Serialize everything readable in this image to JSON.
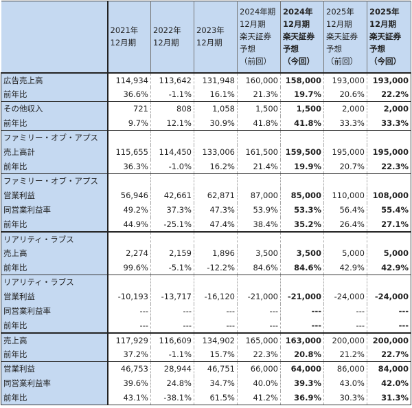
{
  "header": {
    "columns": [
      {
        "lines": [
          "2021年",
          "12月期"
        ],
        "bold": false
      },
      {
        "lines": [
          "2022年",
          "12月期"
        ],
        "bold": false
      },
      {
        "lines": [
          "2023年",
          "12月期"
        ],
        "bold": false
      },
      {
        "lines": [
          "2024年期",
          "12月期",
          "楽天証券",
          "予想",
          "（前回）"
        ],
        "bold": false
      },
      {
        "lines": [
          "2024年",
          "12月期",
          "楽天証券",
          "予想",
          "（今回）"
        ],
        "bold": true
      },
      {
        "lines": [
          "2025年",
          "12月期",
          "楽天証券",
          "予想",
          "（前回）"
        ],
        "bold": false
      },
      {
        "lines": [
          "2025年",
          "12月期",
          "楽天証券",
          "予想",
          "（今回）"
        ],
        "bold": true
      }
    ]
  },
  "rows": [
    {
      "label": "広告売上高",
      "values": [
        "114,934",
        "113,642",
        "131,948",
        "160,000",
        "158,000",
        "193,000",
        "193,000"
      ],
      "red": false,
      "border": "thick"
    },
    {
      "label": "前年比",
      "values": [
        "36.6%",
        "-1.1%",
        "16.1%",
        "21.3%",
        "19.7%",
        "20.6%",
        "22.2%"
      ],
      "red": false,
      "border": ""
    },
    {
      "label": "その他収入",
      "values": [
        "721",
        "808",
        "1,058",
        "1,500",
        "1,500",
        "2,000",
        "2,000"
      ],
      "red": false,
      "border": "gstart"
    },
    {
      "label": "前年比",
      "values": [
        "9.7%",
        "12.1%",
        "30.9%",
        "41.8%",
        "41.8%",
        "33.3%",
        "33.3%"
      ],
      "red": false,
      "border": ""
    },
    {
      "label": "ファミリー・オブ・アプス",
      "values": [
        "",
        "",
        "",
        "",
        "",
        "",
        ""
      ],
      "red": false,
      "border": "gstart"
    },
    {
      "label": "売上高計",
      "values": [
        "115,655",
        "114,450",
        "133,006",
        "161,500",
        "159,500",
        "195,000",
        "195,000"
      ],
      "red": false,
      "border": ""
    },
    {
      "label": "前年比",
      "values": [
        "36.3%",
        "-1.0%",
        "16.2%",
        "21.4%",
        "19.9%",
        "20.7%",
        "22.3%"
      ],
      "red": false,
      "border": ""
    },
    {
      "label": "ファミリー・オブ・アプス",
      "values": [
        "",
        "",
        "",
        "",
        "",
        "",
        ""
      ],
      "red": false,
      "border": "gstart"
    },
    {
      "label": "営業利益",
      "values": [
        "56,946",
        "42,661",
        "62,871",
        "87,000",
        "85,000",
        "110,000",
        "108,000"
      ],
      "red": false,
      "border": ""
    },
    {
      "label": "同営業利益率",
      "values": [
        "49.2%",
        "37.3%",
        "47.3%",
        "53.9%",
        "53.3%",
        "56.4%",
        "55.4%"
      ],
      "red": false,
      "border": ""
    },
    {
      "label": "前年比",
      "values": [
        "44.9%",
        "-25.1%",
        "47.4%",
        "38.4%",
        "35.2%",
        "26.4%",
        "27.1%"
      ],
      "red": false,
      "border": ""
    },
    {
      "label": "リアリティ・ラブス",
      "values": [
        "",
        "",
        "",
        "",
        "",
        "",
        ""
      ],
      "red": false,
      "border": "thick"
    },
    {
      "label": "売上高",
      "values": [
        "2,274",
        "2,159",
        "1,896",
        "3,500",
        "3,500",
        "5,000",
        "5,000"
      ],
      "red": false,
      "border": ""
    },
    {
      "label": "前年比",
      "values": [
        "99.6%",
        "-5.1%",
        "-12.2%",
        "84.6%",
        "84.6%",
        "42.9%",
        "42.9%"
      ],
      "red": false,
      "border": ""
    },
    {
      "label": "リアリティ・ラブス",
      "values": [
        "",
        "",
        "",
        "",
        "",
        "",
        ""
      ],
      "red": false,
      "border": "gstart"
    },
    {
      "label": "営業利益",
      "values": [
        "-10,193",
        "-13,717",
        "-16,120",
        "-21,000",
        "-21,000",
        "-24,000",
        "-24,000"
      ],
      "red": true,
      "border": ""
    },
    {
      "label": "同営業利益率",
      "values": [
        "---",
        "---",
        "---",
        "---",
        "---",
        "---",
        "---"
      ],
      "red": false,
      "border": ""
    },
    {
      "label": "前年比",
      "values": [
        "---",
        "---",
        "---",
        "---",
        "---",
        "---",
        "---"
      ],
      "red": false,
      "border": ""
    },
    {
      "label": "売上高",
      "values": [
        "117,929",
        "116,609",
        "134,902",
        "165,000",
        "163,000",
        "200,000",
        "200,000"
      ],
      "red": false,
      "border": "thick"
    },
    {
      "label": "前年比",
      "values": [
        "37.2%",
        "-1.1%",
        "15.7%",
        "22.3%",
        "20.8%",
        "21.2%",
        "22.7%"
      ],
      "red": false,
      "border": ""
    },
    {
      "label": "営業利益",
      "values": [
        "46,753",
        "28,944",
        "46,751",
        "66,000",
        "64,000",
        "86,000",
        "84,000"
      ],
      "red": false,
      "border": "gstart"
    },
    {
      "label": "同営業利益率",
      "values": [
        "39.6%",
        "24.8%",
        "34.7%",
        "40.0%",
        "39.3%",
        "43.0%",
        "42.0%"
      ],
      "red": false,
      "border": ""
    },
    {
      "label": "前年比",
      "values": [
        "43.1%",
        "-38.1%",
        "61.5%",
        "41.2%",
        "36.9%",
        "30.3%",
        "31.3%"
      ],
      "red": false,
      "border": "final"
    }
  ]
}
